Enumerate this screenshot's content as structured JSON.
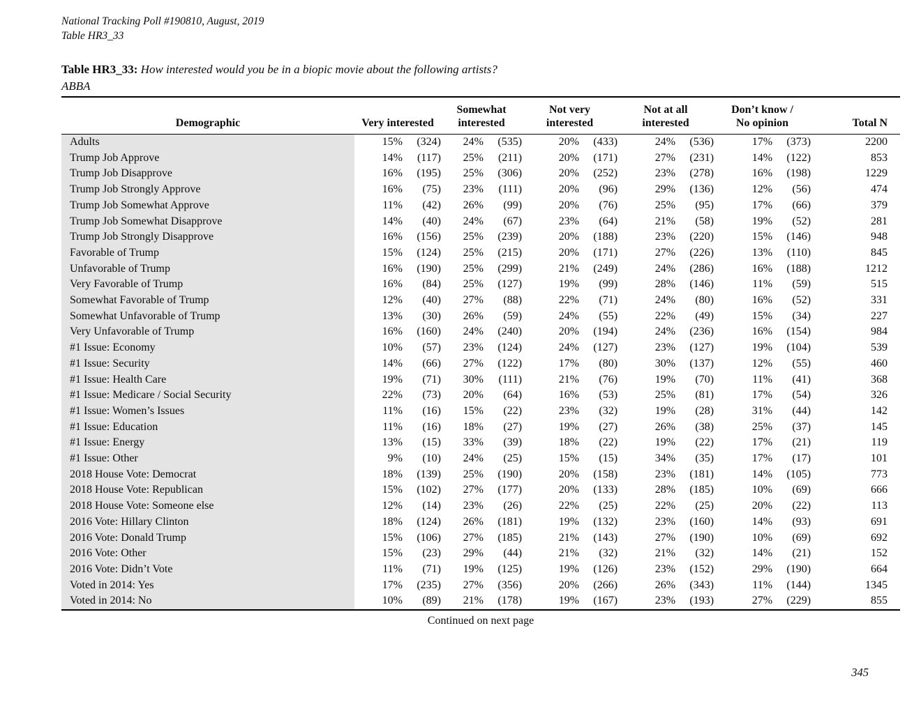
{
  "page": {
    "header_line1": "National Tracking Poll #190810, August, 2019",
    "header_line2": "Table HR3_33",
    "title_label": "Table HR3_33:",
    "title_question": "How interested would you be in a biopic movie about the following artists?",
    "title_subject": "ABBA",
    "continued": "Continued on next page",
    "page_number": "345"
  },
  "colors": {
    "demographic_shade": "#e4e4e4",
    "rule_color": "#000000"
  },
  "table": {
    "columns": {
      "demographic": "Demographic",
      "groups": [
        {
          "line1": "Very interested",
          "line2": ""
        },
        {
          "line1": "Somewhat",
          "line2": "interested"
        },
        {
          "line1": "Not very",
          "line2": "interested"
        },
        {
          "line1": "Not at all",
          "line2": "interested"
        },
        {
          "line1": "Don’t know /",
          "line2": "No opinion"
        }
      ],
      "total": "Total N"
    },
    "rows": [
      [
        "Adults",
        "15%",
        "(324)",
        "24%",
        "(535)",
        "20%",
        "(433)",
        "24%",
        "(536)",
        "17%",
        "(373)",
        "2200"
      ],
      [
        "Trump Job Approve",
        "14%",
        "(117)",
        "25%",
        "(211)",
        "20%",
        "(171)",
        "27%",
        "(231)",
        "14%",
        "(122)",
        "853"
      ],
      [
        "Trump Job Disapprove",
        "16%",
        "(195)",
        "25%",
        "(306)",
        "20%",
        "(252)",
        "23%",
        "(278)",
        "16%",
        "(198)",
        "1229"
      ],
      [
        "Trump Job Strongly Approve",
        "16%",
        "(75)",
        "23%",
        "(111)",
        "20%",
        "(96)",
        "29%",
        "(136)",
        "12%",
        "(56)",
        "474"
      ],
      [
        "Trump Job Somewhat Approve",
        "11%",
        "(42)",
        "26%",
        "(99)",
        "20%",
        "(76)",
        "25%",
        "(95)",
        "17%",
        "(66)",
        "379"
      ],
      [
        "Trump Job Somewhat Disapprove",
        "14%",
        "(40)",
        "24%",
        "(67)",
        "23%",
        "(64)",
        "21%",
        "(58)",
        "19%",
        "(52)",
        "281"
      ],
      [
        "Trump Job Strongly Disapprove",
        "16%",
        "(156)",
        "25%",
        "(239)",
        "20%",
        "(188)",
        "23%",
        "(220)",
        "15%",
        "(146)",
        "948"
      ],
      [
        "Favorable of Trump",
        "15%",
        "(124)",
        "25%",
        "(215)",
        "20%",
        "(171)",
        "27%",
        "(226)",
        "13%",
        "(110)",
        "845"
      ],
      [
        "Unfavorable of Trump",
        "16%",
        "(190)",
        "25%",
        "(299)",
        "21%",
        "(249)",
        "24%",
        "(286)",
        "16%",
        "(188)",
        "1212"
      ],
      [
        "Very Favorable of Trump",
        "16%",
        "(84)",
        "25%",
        "(127)",
        "19%",
        "(99)",
        "28%",
        "(146)",
        "11%",
        "(59)",
        "515"
      ],
      [
        "Somewhat Favorable of Trump",
        "12%",
        "(40)",
        "27%",
        "(88)",
        "22%",
        "(71)",
        "24%",
        "(80)",
        "16%",
        "(52)",
        "331"
      ],
      [
        "Somewhat Unfavorable of Trump",
        "13%",
        "(30)",
        "26%",
        "(59)",
        "24%",
        "(55)",
        "22%",
        "(49)",
        "15%",
        "(34)",
        "227"
      ],
      [
        "Very Unfavorable of Trump",
        "16%",
        "(160)",
        "24%",
        "(240)",
        "20%",
        "(194)",
        "24%",
        "(236)",
        "16%",
        "(154)",
        "984"
      ],
      [
        "#1 Issue: Economy",
        "10%",
        "(57)",
        "23%",
        "(124)",
        "24%",
        "(127)",
        "23%",
        "(127)",
        "19%",
        "(104)",
        "539"
      ],
      [
        "#1 Issue: Security",
        "14%",
        "(66)",
        "27%",
        "(122)",
        "17%",
        "(80)",
        "30%",
        "(137)",
        "12%",
        "(55)",
        "460"
      ],
      [
        "#1 Issue: Health Care",
        "19%",
        "(71)",
        "30%",
        "(111)",
        "21%",
        "(76)",
        "19%",
        "(70)",
        "11%",
        "(41)",
        "368"
      ],
      [
        "#1 Issue: Medicare / Social Security",
        "22%",
        "(73)",
        "20%",
        "(64)",
        "16%",
        "(53)",
        "25%",
        "(81)",
        "17%",
        "(54)",
        "326"
      ],
      [
        "#1 Issue: Women’s Issues",
        "11%",
        "(16)",
        "15%",
        "(22)",
        "23%",
        "(32)",
        "19%",
        "(28)",
        "31%",
        "(44)",
        "142"
      ],
      [
        "#1 Issue: Education",
        "11%",
        "(16)",
        "18%",
        "(27)",
        "19%",
        "(27)",
        "26%",
        "(38)",
        "25%",
        "(37)",
        "145"
      ],
      [
        "#1 Issue: Energy",
        "13%",
        "(15)",
        "33%",
        "(39)",
        "18%",
        "(22)",
        "19%",
        "(22)",
        "17%",
        "(21)",
        "119"
      ],
      [
        "#1 Issue: Other",
        "9%",
        "(10)",
        "24%",
        "(25)",
        "15%",
        "(15)",
        "34%",
        "(35)",
        "17%",
        "(17)",
        "101"
      ],
      [
        "2018 House Vote: Democrat",
        "18%",
        "(139)",
        "25%",
        "(190)",
        "20%",
        "(158)",
        "23%",
        "(181)",
        "14%",
        "(105)",
        "773"
      ],
      [
        "2018 House Vote: Republican",
        "15%",
        "(102)",
        "27%",
        "(177)",
        "20%",
        "(133)",
        "28%",
        "(185)",
        "10%",
        "(69)",
        "666"
      ],
      [
        "2018 House Vote: Someone else",
        "12%",
        "(14)",
        "23%",
        "(26)",
        "22%",
        "(25)",
        "22%",
        "(25)",
        "20%",
        "(22)",
        "113"
      ],
      [
        "2016 Vote: Hillary Clinton",
        "18%",
        "(124)",
        "26%",
        "(181)",
        "19%",
        "(132)",
        "23%",
        "(160)",
        "14%",
        "(93)",
        "691"
      ],
      [
        "2016 Vote: Donald Trump",
        "15%",
        "(106)",
        "27%",
        "(185)",
        "21%",
        "(143)",
        "27%",
        "(190)",
        "10%",
        "(69)",
        "692"
      ],
      [
        "2016 Vote: Other",
        "15%",
        "(23)",
        "29%",
        "(44)",
        "21%",
        "(32)",
        "21%",
        "(32)",
        "14%",
        "(21)",
        "152"
      ],
      [
        "2016 Vote: Didn’t Vote",
        "11%",
        "(71)",
        "19%",
        "(125)",
        "19%",
        "(126)",
        "23%",
        "(152)",
        "29%",
        "(190)",
        "664"
      ],
      [
        "Voted in 2014: Yes",
        "17%",
        "(235)",
        "27%",
        "(356)",
        "20%",
        "(266)",
        "26%",
        "(343)",
        "11%",
        "(144)",
        "1345"
      ],
      [
        "Voted in 2014: No",
        "10%",
        "(89)",
        "21%",
        "(178)",
        "19%",
        "(167)",
        "23%",
        "(193)",
        "27%",
        "(229)",
        "855"
      ]
    ]
  }
}
